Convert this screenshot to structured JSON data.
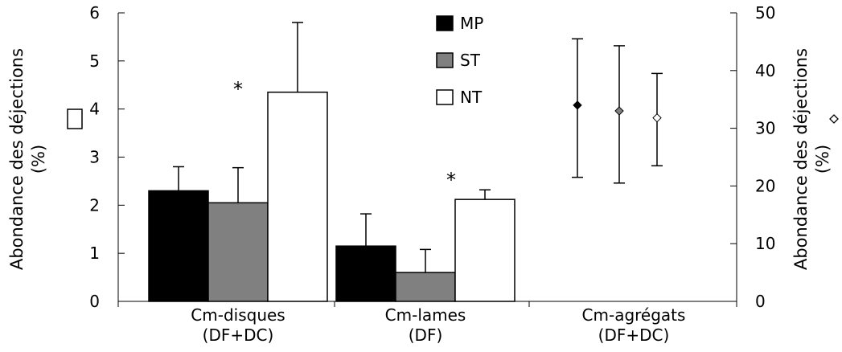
{
  "chart_data": {
    "type": "bar",
    "categories": [
      [
        "Cm-disques",
        "(DF+DC)"
      ],
      [
        "Cm-lames",
        "(DF)"
      ],
      [
        "Cm-agrégats",
        "(DF+DC)"
      ]
    ],
    "legend": {
      "placement": "top-center",
      "entries": [
        "MP",
        "ST",
        "NT"
      ]
    },
    "colors": {
      "MP": "#000000",
      "ST": "#808080",
      "NT": "#ffffff"
    },
    "y_left": {
      "label": [
        "Abondance des déjections",
        "(%)"
      ],
      "symbol": "square",
      "range": [
        0,
        6
      ],
      "ticks": [
        "0",
        "1",
        "2",
        "3",
        "4",
        "5",
        "6"
      ]
    },
    "y_right": {
      "label": [
        "Abondance des déjections",
        "(%)"
      ],
      "symbol": "diamond",
      "range": [
        0,
        50
      ],
      "ticks": [
        "0",
        "10",
        "20",
        "30",
        "40",
        "50"
      ]
    },
    "bars": [
      {
        "category": "Cm-disques",
        "series": "MP",
        "value": 2.3,
        "error_upper": 2.8
      },
      {
        "category": "Cm-disques",
        "series": "ST",
        "value": 2.05,
        "error_upper": 2.78
      },
      {
        "category": "Cm-disques",
        "series": "NT",
        "value": 4.35,
        "error_upper": 5.8
      },
      {
        "category": "Cm-lames",
        "series": "MP",
        "value": 1.15,
        "error_upper": 1.82
      },
      {
        "category": "Cm-lames",
        "series": "ST",
        "value": 0.6,
        "error_upper": 1.08
      },
      {
        "category": "Cm-lames",
        "series": "NT",
        "value": 2.12,
        "error_upper": 2.32
      }
    ],
    "points_right_axis": [
      {
        "category": "Cm-agrégats",
        "series": "MP",
        "value": 34,
        "error_low": 21.5,
        "error_high": 45.5
      },
      {
        "category": "Cm-agrégats",
        "series": "ST",
        "value": 33,
        "error_low": 20.5,
        "error_high": 44.3
      },
      {
        "category": "Cm-agrégats",
        "series": "NT",
        "value": 31.8,
        "error_low": 23.5,
        "error_high": 39.5
      }
    ],
    "annotations": [
      {
        "text": "*",
        "category": "Cm-disques"
      },
      {
        "text": "*",
        "category": "Cm-lames"
      }
    ],
    "grid": false
  }
}
